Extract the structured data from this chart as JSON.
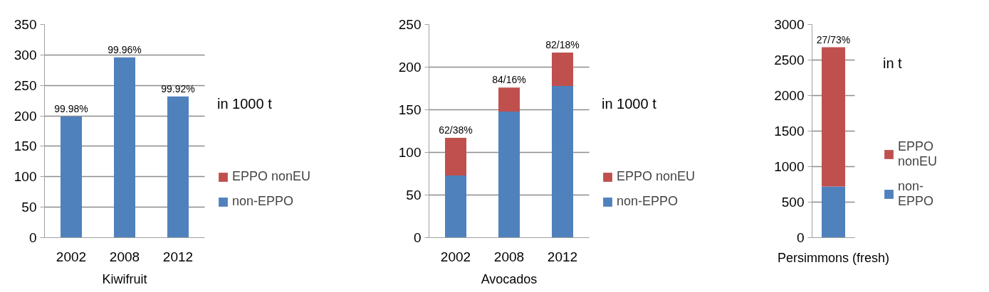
{
  "chart_data": [
    {
      "type": "bar",
      "stacked": true,
      "categories": [
        "2002",
        "2008",
        "2012"
      ],
      "xlabel": "Kiwifruit",
      "ylim": [
        0,
        350
      ],
      "yticks": [
        0,
        50,
        100,
        150,
        200,
        250,
        300,
        350
      ],
      "grid": "y",
      "legend": "right",
      "annotations": [
        "in 1000 t",
        {
          "text": "99.98%",
          "x": "2002",
          "y": 199
        },
        {
          "text": "99.96%",
          "x": "2008",
          "y": 296
        },
        {
          "text": "99.92%",
          "x": "2012",
          "y": 232
        }
      ],
      "series": [
        {
          "name": "non-EPPO",
          "color": "#4f81bd",
          "values": [
            199,
            296,
            232
          ]
        },
        {
          "name": "EPPO nonEU",
          "color": "#c0504d",
          "values": [
            null,
            null,
            null
          ]
        }
      ]
    },
    {
      "type": "bar",
      "stacked": true,
      "categories": [
        "2002",
        "2008",
        "2012"
      ],
      "xlabel": "Avocados",
      "ylim": [
        0,
        250
      ],
      "yticks": [
        0,
        50,
        100,
        150,
        200,
        250
      ],
      "grid": "y",
      "legend": "right",
      "annotations": [
        "in 1000 t",
        {
          "text": "62/38%",
          "x": "2002",
          "y": 117
        },
        {
          "text": "84/16%",
          "x": "2008",
          "y": 176
        },
        {
          "text": "82/18%",
          "x": "2012",
          "y": 217
        }
      ],
      "series": [
        {
          "name": "non-EPPO",
          "color": "#4f81bd",
          "values": [
            73,
            148,
            178
          ]
        },
        {
          "name": "EPPO nonEU",
          "color": "#c0504d",
          "values": [
            44,
            28,
            39
          ]
        }
      ]
    },
    {
      "type": "bar",
      "stacked": true,
      "categories": [
        null
      ],
      "xlabel": "Persimmons (fresh)",
      "ylim": [
        0,
        3000
      ],
      "yticks": [
        0,
        500,
        1000,
        1500,
        2000,
        2500,
        3000
      ],
      "grid": "y",
      "legend": "right",
      "annotations": [
        "in t",
        {
          "text": "27/73%",
          "y": 2680
        }
      ],
      "series": [
        {
          "name": "non-EPPO",
          "color": "#4f81bd",
          "values": [
            720
          ]
        },
        {
          "name": "EPPO nonEU",
          "color": "#c0504d",
          "values": [
            1960
          ]
        }
      ]
    }
  ]
}
